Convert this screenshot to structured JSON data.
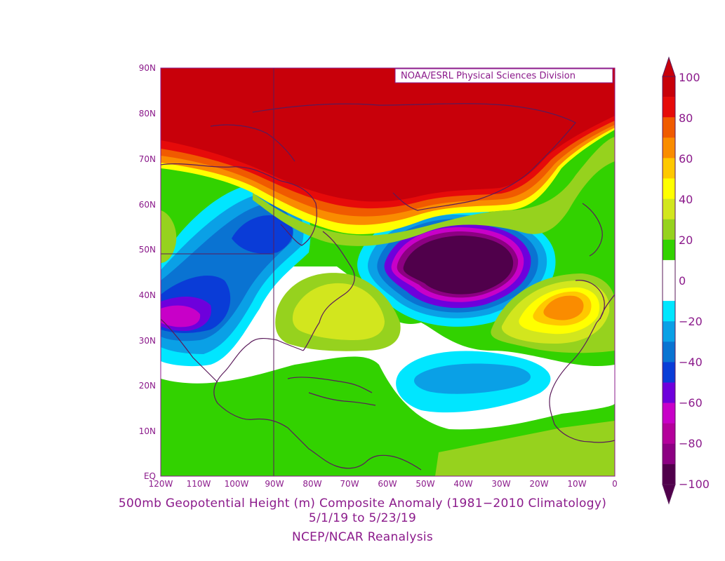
{
  "credit_box": "NOAA/ESRL Physical Sciences Division",
  "lat_labels": [
    "90N",
    "80N",
    "70N",
    "60N",
    "50N",
    "40N",
    "30N",
    "20N",
    "10N",
    "EQ"
  ],
  "lon_labels": [
    "120W",
    "110W",
    "100W",
    "90W",
    "80W",
    "70W",
    "60W",
    "50W",
    "40W",
    "30W",
    "20W",
    "10W",
    "0"
  ],
  "colorbar": {
    "labels": [
      "100",
      "80",
      "60",
      "40",
      "20",
      "0",
      "−20",
      "−40",
      "−60",
      "−80",
      "−100"
    ],
    "colors": [
      "#c8000a",
      "#e60a0a",
      "#f05a00",
      "#fa8c00",
      "#ffc800",
      "#ffff00",
      "#d2e61e",
      "#96d21e",
      "#32d200",
      "#ffffff",
      "#ffffff",
      "#00e6ff",
      "#0aa0e6",
      "#0a73d2",
      "#0a3cd7",
      "#6e00dc",
      "#c800c8",
      "#b4009b",
      "#8c0082",
      "#50004b"
    ]
  },
  "caption": {
    "line1": "500mb Geopotential Height (m) Composite Anomaly (1981−2010 Climatology)",
    "line2": "5/1/19  to 5/23/19",
    "line3": "NCEP/NCAR Reanalysis"
  }
}
